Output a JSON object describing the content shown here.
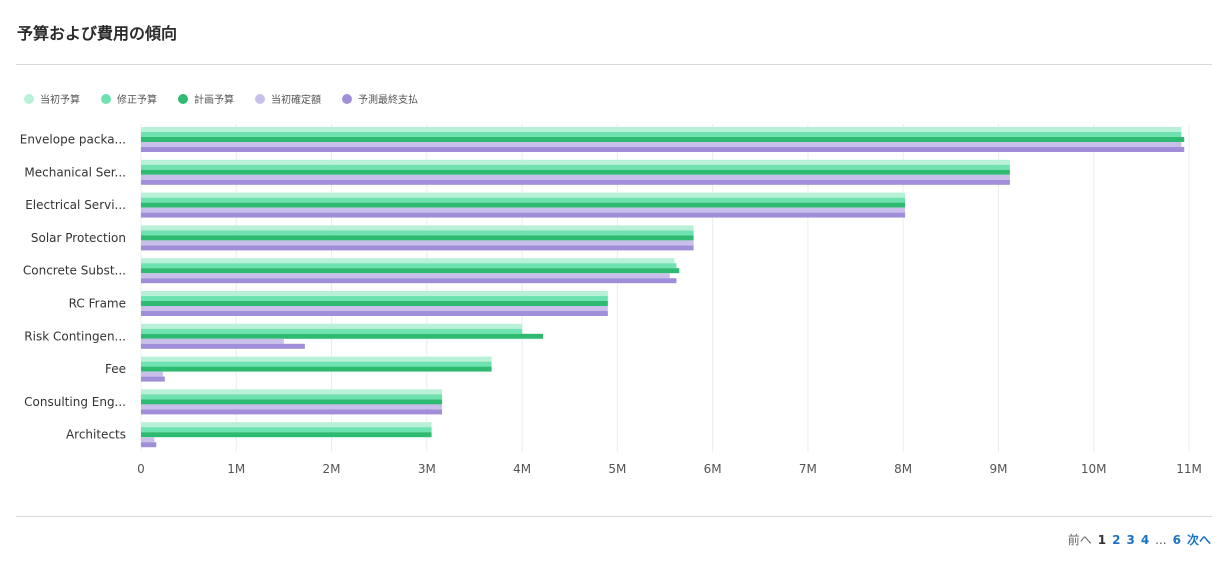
{
  "title": "予算および費用の傾向",
  "pager": {
    "prev": "前へ",
    "current": "1",
    "pages": [
      "2",
      "3",
      "4"
    ],
    "ellipsis": "...",
    "last": "6",
    "next": "次へ"
  },
  "chart_data": {
    "type": "bar",
    "orientation": "horizontal",
    "categories": [
      "Envelope packa...",
      "Mechanical Ser...",
      "Electrical Servi...",
      "Solar Protection",
      "Concrete Subst...",
      "RC Frame",
      "Risk Contingen...",
      "Fee",
      "Consulting Eng...",
      "Architects"
    ],
    "series": [
      {
        "name": "当初予算",
        "color": "#b8f0d8",
        "values": [
          10.92,
          9.12,
          8.02,
          5.8,
          5.6,
          4.9,
          4.0,
          3.68,
          3.16,
          3.05
        ]
      },
      {
        "name": "修正予算",
        "color": "#6ee2b0",
        "values": [
          10.92,
          9.12,
          8.02,
          5.8,
          5.62,
          4.9,
          4.0,
          3.68,
          3.16,
          3.05
        ]
      },
      {
        "name": "計画予算",
        "color": "#2fba72",
        "values": [
          10.95,
          9.12,
          8.02,
          5.8,
          5.65,
          4.9,
          4.22,
          3.68,
          3.16,
          3.05
        ]
      },
      {
        "name": "当初確定額",
        "color": "#c8c0ea",
        "values": [
          10.92,
          9.12,
          8.02,
          5.8,
          5.55,
          4.9,
          1.5,
          0.23,
          3.16,
          0.14
        ]
      },
      {
        "name": "予測最終支払",
        "color": "#a08fd8",
        "values": [
          10.95,
          9.12,
          8.02,
          5.8,
          5.62,
          4.9,
          1.72,
          0.25,
          3.16,
          0.16
        ]
      }
    ],
    "xlim": [
      0,
      11
    ],
    "xticks": [
      "0",
      "1M",
      "2M",
      "3M",
      "4M",
      "5M",
      "6M",
      "7M",
      "8M",
      "9M",
      "10M",
      "11M"
    ],
    "unit": "M",
    "grid": true,
    "legend_position": "top-left"
  }
}
